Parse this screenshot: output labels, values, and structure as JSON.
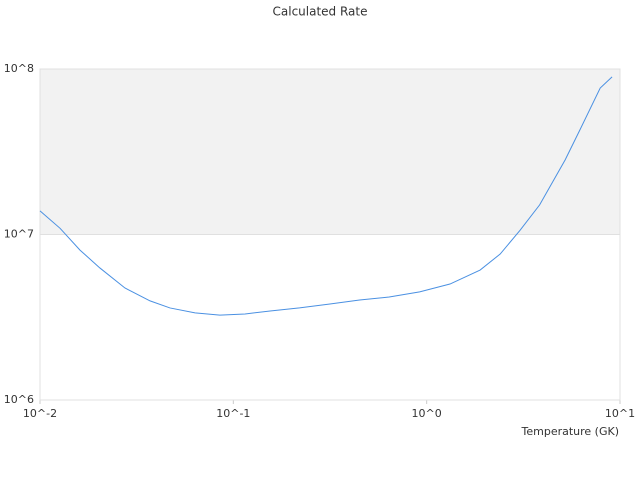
{
  "chart_data": {
    "type": "line",
    "title": "Calculated Rate",
    "x_label": "Temperature (GK)",
    "log_x": true,
    "log_y": true,
    "grid": true,
    "alternate_bands": true,
    "band_color": "#f2f2f2",
    "xlim": [
      0.01,
      10
    ],
    "ylim": [
      1000000,
      100000000
    ],
    "xticks": [
      {
        "value": 0.01,
        "label": "10^-2"
      },
      {
        "value": 0.1,
        "label": "10^-1"
      },
      {
        "value": 1,
        "label": "10^0"
      },
      {
        "value": 10,
        "label": "10^1"
      }
    ],
    "yticks": [
      {
        "value": 1000000,
        "label": "10^6"
      },
      {
        "value": 10000000,
        "label": "10^7"
      },
      {
        "value": 100000000,
        "label": "10^8"
      }
    ],
    "x": [
      0.01,
      0.0127,
      0.0161,
      0.0204,
      0.0275,
      0.0371,
      0.047,
      0.0634,
      0.0852,
      0.115,
      0.155,
      0.22,
      0.316,
      0.45,
      0.64,
      0.92,
      1.32,
      1.89,
      2.4,
      3.04,
      3.84,
      5.2,
      6.2,
      7.9,
      9.1
    ],
    "series": [
      {
        "color": "#4a90e2",
        "values": [
          13900000,
          10900000,
          8050000,
          6280000,
          4750000,
          3970000,
          3600000,
          3360000,
          3260000,
          3310000,
          3450000,
          3600000,
          3800000,
          4020000,
          4190000,
          4500000,
          5020000,
          6100000,
          7620000,
          10600000,
          15100000,
          28200000,
          42800000,
          76700000,
          89600000
        ]
      }
    ]
  }
}
